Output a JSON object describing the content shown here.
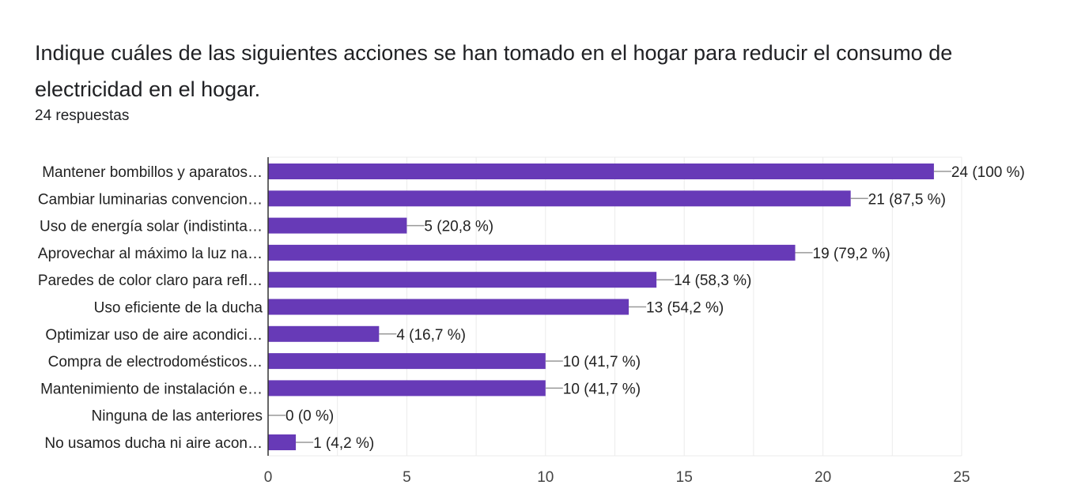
{
  "header": {
    "title": "Indique cuáles de las siguientes acciones se han tomado en el hogar para reducir el consumo de electricidad en el hogar.",
    "responses": "24 respuestas"
  },
  "chart_data": {
    "type": "bar",
    "orientation": "horizontal",
    "categories": [
      "Mantener bombillos y aparatos…",
      "Cambiar luminarias convencion…",
      "Uso de energía solar (indistinta…",
      "Aprovechar al máximo la luz na…",
      "Paredes de color claro para refl…",
      "Uso eficiente de la ducha",
      "Optimizar uso de aire acondici…",
      "Compra de electrodomésticos…",
      "Mantenimiento de instalación e…",
      "Ninguna de las anteriores",
      "No usamos ducha ni aire acon…"
    ],
    "values": [
      24,
      21,
      5,
      19,
      14,
      13,
      4,
      10,
      10,
      0,
      1
    ],
    "data_labels": [
      "24 (100 %)",
      "21 (87,5 %)",
      "5 (20,8 %)",
      "19 (79,2 %)",
      "14 (58,3 %)",
      "13 (54,2 %)",
      "4 (16,7 %)",
      "10 (41,7 %)",
      "10 (41,7 %)",
      "0 (0 %)",
      "1 (4,2 %)"
    ],
    "xlim": [
      0,
      25
    ],
    "xticks": [
      "0",
      "5",
      "10",
      "15",
      "20",
      "25"
    ],
    "grid": true,
    "bar_color": "#673ab7"
  }
}
